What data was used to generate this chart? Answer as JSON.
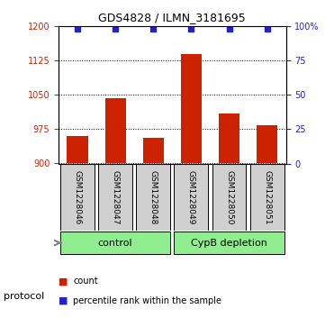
{
  "title": "GDS4828 / ILMN_3181695",
  "samples": [
    "GSM1228046",
    "GSM1228047",
    "GSM1228048",
    "GSM1228049",
    "GSM1228050",
    "GSM1228051"
  ],
  "counts": [
    960,
    1043,
    957,
    1140,
    1010,
    983
  ],
  "percentile_ranks": [
    98,
    98,
    98,
    98,
    98,
    98
  ],
  "groups": [
    "control",
    "control",
    "control",
    "CypB depletion",
    "CypB depletion",
    "CypB depletion"
  ],
  "group_colors": {
    "control": "#90EE90",
    "CypB depletion": "#90EE90"
  },
  "bar_color": "#CC2200",
  "dot_color": "#2222CC",
  "ylim_left": [
    900,
    1200
  ],
  "yticks_left": [
    900,
    975,
    1050,
    1125,
    1200
  ],
  "ylim_right": [
    0,
    100
  ],
  "yticks_right": [
    0,
    25,
    50,
    75,
    100
  ],
  "yticklabels_right": [
    "0",
    "25",
    "50",
    "75",
    "100%"
  ],
  "bg_color_plot": "#ffffff",
  "sample_box_color": "#d0d0d0",
  "legend_count_color": "#CC2200",
  "legend_dot_color": "#2222CC"
}
